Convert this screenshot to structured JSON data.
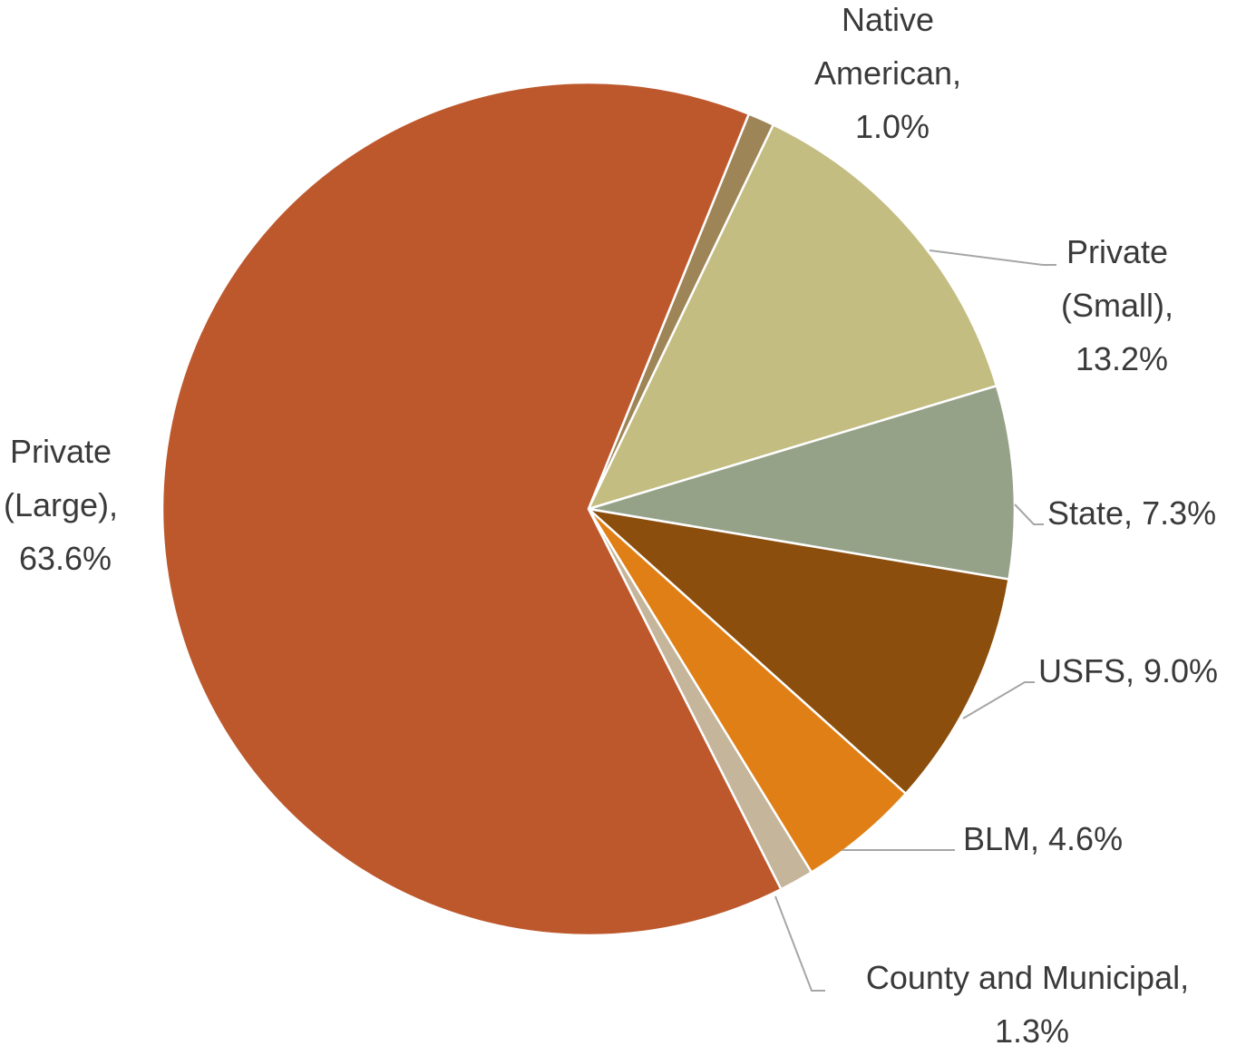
{
  "chart_data": {
    "type": "pie",
    "title": "",
    "slices": [
      {
        "label": "Native American",
        "value": 1.0,
        "display_lines": [
          "Native",
          "American,",
          "1.0%"
        ],
        "color": "#9E8557"
      },
      {
        "label": "Private (Small)",
        "value": 13.2,
        "display_lines": [
          "Private",
          "(Small),",
          "13.2%"
        ],
        "color": "#C4BD82"
      },
      {
        "label": "State",
        "value": 7.3,
        "display_lines": [
          "State, 7.3%"
        ],
        "color": "#96A288"
      },
      {
        "label": "USFS",
        "value": 9.0,
        "display_lines": [
          "USFS, 9.0%"
        ],
        "color": "#8B4E0D"
      },
      {
        "label": "BLM",
        "value": 4.6,
        "display_lines": [
          "BLM, 4.6%"
        ],
        "color": "#E07F16"
      },
      {
        "label": "County and Municipal",
        "value": 1.3,
        "display_lines": [
          "County and Municipal,",
          "1.3%"
        ],
        "color": "#C5B59A"
      },
      {
        "label": "Private (Large)",
        "value": 63.6,
        "display_lines": [
          "Private",
          "(Large),",
          "63.6%"
        ],
        "color": "#BD582D"
      }
    ],
    "legend": "none (data labels with leader lines)"
  }
}
